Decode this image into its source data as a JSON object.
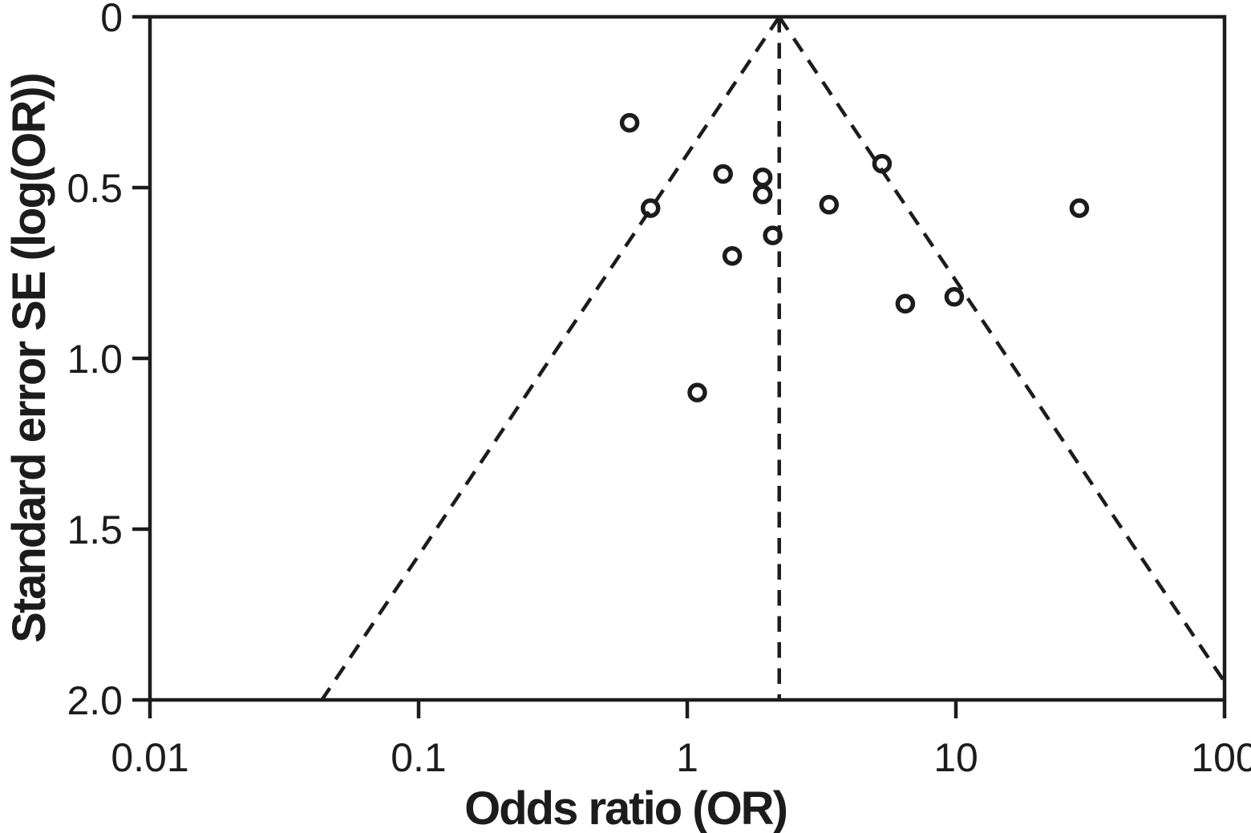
{
  "figure": {
    "background_color": "#ffffff",
    "ink_color": "#1c1c1c",
    "kind": "funnel plot (meta-analysis publication bias)"
  },
  "chart_data": {
    "type": "scatter",
    "title": "",
    "xlabel": "Odds ratio (OR)",
    "ylabel": "Standard error SE (log(OR))",
    "x_scale": "log10",
    "xlim": [
      0.01,
      100
    ],
    "ylim": [
      0,
      2.0
    ],
    "y_axis_inverted": true,
    "grid": false,
    "legend": "none",
    "marker": "open-circle",
    "x_tick_values": [
      0.01,
      0.1,
      1,
      10,
      100
    ],
    "x_tick_labels": [
      "0.01",
      "0.1",
      "1",
      "10",
      "100"
    ],
    "y_tick_values": [
      0,
      0.5,
      1.0,
      1.5,
      2.0
    ],
    "y_tick_labels": [
      "0",
      "0.5",
      "1.0",
      "1.5",
      "2.0"
    ],
    "points": [
      {
        "or": 0.61,
        "se": 0.31
      },
      {
        "or": 0.73,
        "se": 0.56
      },
      {
        "or": 1.09,
        "se": 1.1
      },
      {
        "or": 1.36,
        "se": 0.46
      },
      {
        "or": 1.47,
        "se": 0.7
      },
      {
        "or": 1.91,
        "se": 0.47
      },
      {
        "or": 1.91,
        "se": 0.52
      },
      {
        "or": 2.08,
        "se": 0.64
      },
      {
        "or": 3.37,
        "se": 0.55
      },
      {
        "or": 5.31,
        "se": 0.43
      },
      {
        "or": 6.48,
        "se": 0.84
      },
      {
        "or": 9.86,
        "se": 0.82
      },
      {
        "or": 28.8,
        "se": 0.56
      }
    ],
    "funnel": {
      "center_or": 2.2,
      "z": 1.96,
      "se_max": 2.0,
      "line_style": "dashed",
      "has_center_line": true
    }
  }
}
